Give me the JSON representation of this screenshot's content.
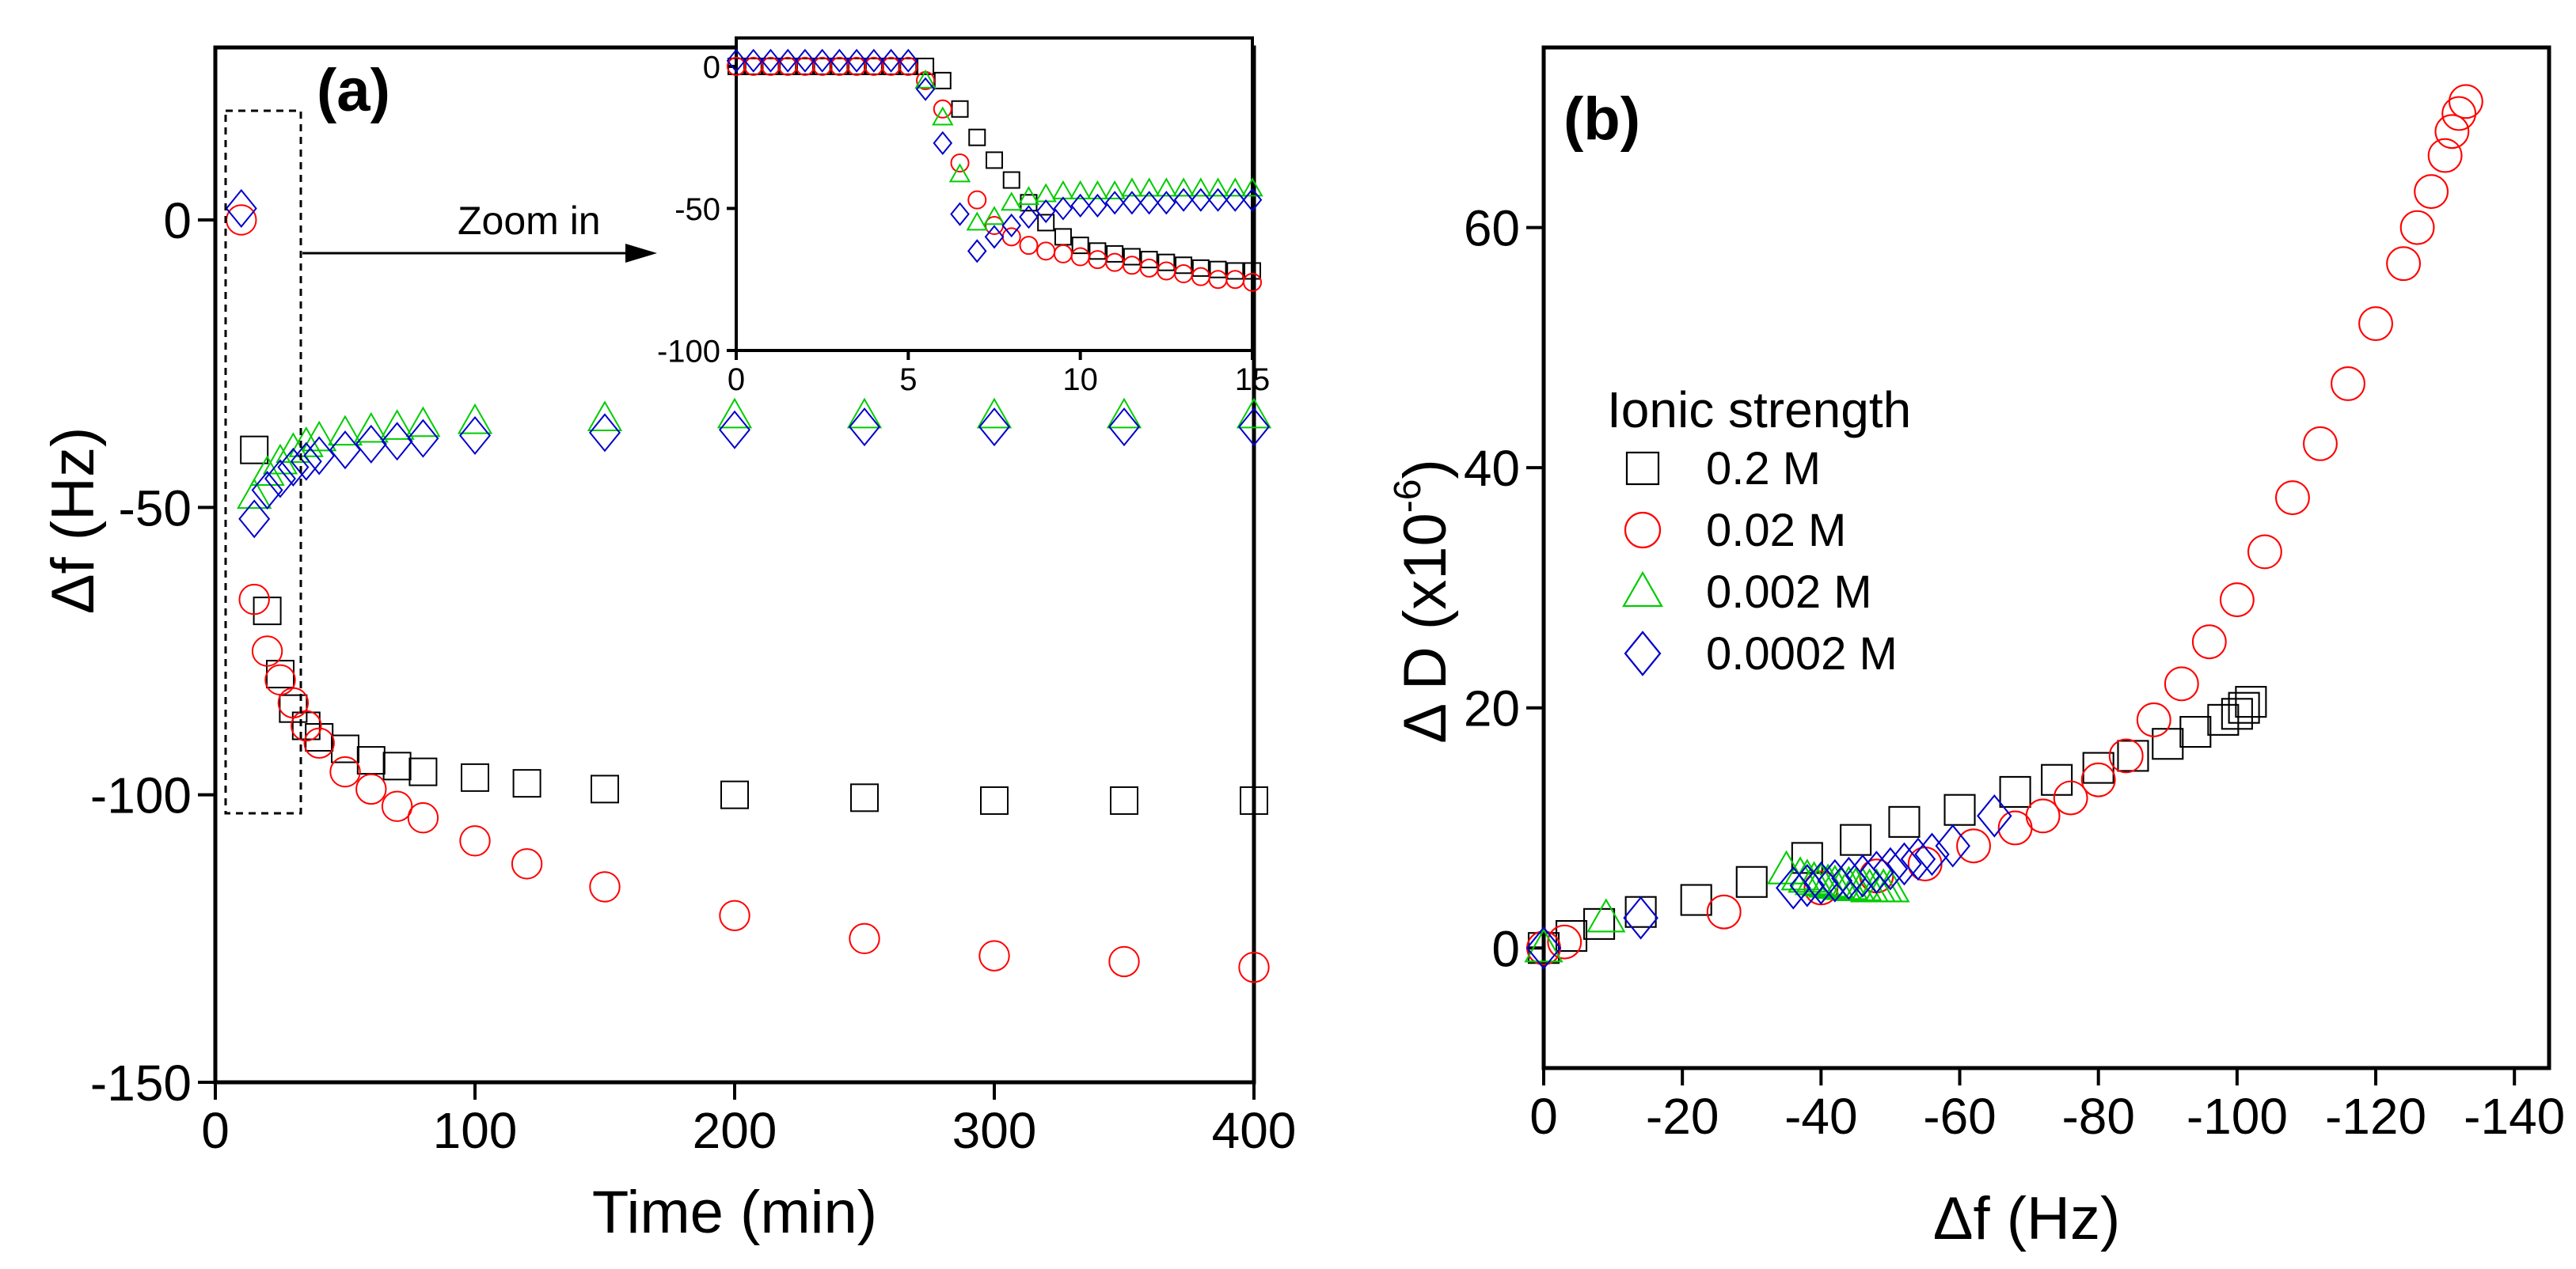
{
  "figure": {
    "panels": [
      "(a)",
      "(b)"
    ],
    "zoom_text": "Zoom in",
    "legend_title": "Ionic strength"
  },
  "colors": {
    "0.2 M": "#000000",
    "0.02 M": "#ff0000",
    "0.002 M": "#00cc00",
    "0.0002 M": "#0000cc"
  },
  "chart_data": [
    {
      "id": "a-main",
      "type": "scatter",
      "title": "(a)",
      "xlabel": "Time (min)",
      "ylabel": "Δf (Hz)",
      "xlim": [
        0,
        400
      ],
      "ylim": [
        -150,
        30
      ],
      "xticks": [
        0,
        100,
        200,
        300,
        400
      ],
      "yticks": [
        0,
        -50,
        -100,
        -150
      ],
      "series": [
        {
          "name": "0.2 M",
          "marker": "square",
          "x": [
            15,
            20,
            25,
            30,
            35,
            40,
            50,
            60,
            70,
            80,
            100,
            120,
            150,
            200,
            250,
            300,
            350,
            400
          ],
          "y": [
            -40,
            -68,
            -79,
            -85,
            -88,
            -90,
            -92,
            -94,
            -95,
            -96,
            -97,
            -98,
            -99,
            -100,
            -100.5,
            -101,
            -101,
            -101
          ]
        },
        {
          "name": "0.02 M",
          "marker": "circle",
          "x": [
            10,
            15,
            20,
            25,
            30,
            35,
            40,
            50,
            60,
            70,
            80,
            100,
            120,
            150,
            200,
            250,
            300,
            350,
            400
          ],
          "y": [
            0,
            -66,
            -75,
            -80,
            -84,
            -88,
            -91,
            -96,
            -99,
            -102,
            -104,
            -108,
            -112,
            -116,
            -121,
            -125,
            -128,
            -129,
            -130
          ]
        },
        {
          "name": "0.002 M",
          "marker": "triangle",
          "x": [
            15,
            20,
            25,
            30,
            35,
            40,
            50,
            60,
            70,
            80,
            100,
            150,
            200,
            250,
            300,
            350,
            400
          ],
          "y": [
            -48,
            -44,
            -42,
            -40,
            -39,
            -38,
            -37,
            -36.5,
            -36,
            -35.5,
            -35,
            -34.5,
            -34,
            -34,
            -34,
            -34,
            -34
          ]
        },
        {
          "name": "0.0002 M",
          "marker": "diamond",
          "x": [
            10,
            15,
            20,
            25,
            30,
            35,
            40,
            50,
            60,
            70,
            80,
            100,
            150,
            200,
            250,
            300,
            350,
            400
          ],
          "y": [
            2,
            -52,
            -47,
            -45,
            -43,
            -42,
            -41,
            -40,
            -39,
            -38.5,
            -38,
            -37.5,
            -37,
            -36.5,
            -36,
            -36,
            -36,
            -36
          ]
        }
      ]
    },
    {
      "id": "a-inset",
      "type": "scatter",
      "title": "",
      "xlim": [
        0,
        15
      ],
      "ylim": [
        -100,
        10
      ],
      "xticks": [
        0,
        5,
        10,
        15
      ],
      "yticks": [
        0,
        -50,
        -100
      ],
      "series": [
        {
          "name": "0.2 M",
          "marker": "square",
          "x": [
            0,
            0.5,
            1,
            1.5,
            2,
            2.5,
            3,
            3.5,
            4,
            4.5,
            5,
            5.5,
            6,
            6.5,
            7,
            7.5,
            8,
            8.5,
            9,
            9.5,
            10,
            10.5,
            11,
            11.5,
            12,
            12.5,
            13,
            13.5,
            14,
            14.5,
            15
          ],
          "y": [
            0,
            0,
            0,
            0,
            0,
            0,
            0,
            0,
            0,
            0,
            0,
            0,
            -5,
            -15,
            -25,
            -33,
            -40,
            -48,
            -55,
            -60,
            -63,
            -65,
            -66,
            -67,
            -68,
            -69,
            -70,
            -71,
            -71.5,
            -72,
            -72
          ]
        },
        {
          "name": "0.02 M",
          "marker": "circle",
          "x": [
            0,
            0.5,
            1,
            1.5,
            2,
            2.5,
            3,
            3.5,
            4,
            4.5,
            5,
            5.5,
            6,
            6.5,
            7,
            7.5,
            8,
            8.5,
            9,
            9.5,
            10,
            10.5,
            11,
            11.5,
            12,
            12.5,
            13,
            13.5,
            14,
            14.5,
            15
          ],
          "y": [
            0,
            0,
            0,
            0,
            0,
            0,
            0,
            0,
            0,
            0,
            0,
            -5,
            -15,
            -34,
            -47,
            -56,
            -60,
            -63,
            -65,
            -66,
            -67,
            -68,
            -69,
            -70,
            -71,
            -72,
            -73,
            -74,
            -75,
            -75,
            -76
          ]
        },
        {
          "name": "0.002 M",
          "marker": "triangle",
          "x": [
            5.5,
            6,
            6.5,
            7,
            7.5,
            8,
            8.5,
            9,
            9.5,
            10,
            10.5,
            11,
            11.5,
            12,
            12.5,
            13,
            13.5,
            14,
            14.5,
            15
          ],
          "y": [
            -5,
            -18,
            -38,
            -55,
            -53,
            -48,
            -46,
            -45,
            -44,
            -44,
            -44,
            -44,
            -43,
            -43,
            -43,
            -43,
            -43,
            -43,
            -43,
            -43
          ]
        },
        {
          "name": "0.0002 M",
          "marker": "diamond",
          "x": [
            0,
            0.5,
            1,
            1.5,
            2,
            2.5,
            3,
            3.5,
            4,
            4.5,
            5,
            5.5,
            6,
            6.5,
            7,
            7.5,
            8,
            8.5,
            9,
            9.5,
            10,
            10.5,
            11,
            11.5,
            12,
            12.5,
            13,
            13.5,
            14,
            14.5,
            15
          ],
          "y": [
            2,
            2,
            2,
            2,
            2,
            2,
            2,
            2,
            2,
            2,
            2,
            -8,
            -27,
            -52,
            -65,
            -60,
            -56,
            -53,
            -51,
            -50,
            -49,
            -49,
            -48,
            -48,
            -48,
            -48,
            -47,
            -47,
            -47,
            -47,
            -47
          ]
        }
      ]
    },
    {
      "id": "b",
      "type": "scatter",
      "title": "(b)",
      "xlabel": "Δf (Hz)",
      "ylabel": "Δ D (x10",
      "ylabel_sup": "-6",
      "ylabel_end": ")",
      "xlim": [
        0,
        -145
      ],
      "ylim": [
        -10,
        75
      ],
      "xticks": [
        0,
        -20,
        -40,
        -60,
        -80,
        -100,
        -120,
        -140
      ],
      "yticks": [
        0,
        20,
        40,
        60
      ],
      "legend": [
        "0.2 M",
        "0.02 M",
        "0.002 M",
        "0.0002 M"
      ],
      "legend_position": "upper-left",
      "series": [
        {
          "name": "0.2 M",
          "marker": "square",
          "x": [
            0,
            -4,
            -8,
            -14,
            -22,
            -30,
            -38,
            -45,
            -52,
            -60,
            -68,
            -74,
            -80,
            -85,
            -90,
            -94,
            -98,
            -100,
            -101,
            -102
          ],
          "y": [
            0,
            1,
            2,
            3,
            4,
            5.5,
            7.5,
            9,
            10.5,
            11.5,
            13,
            14,
            15,
            16,
            17,
            18,
            19,
            19.5,
            20,
            20.5
          ]
        },
        {
          "name": "0.02 M",
          "marker": "circle",
          "x": [
            0,
            -3,
            -26,
            -40,
            -48,
            -55,
            -62,
            -68,
            -72,
            -76,
            -80,
            -84,
            -88,
            -92,
            -96,
            -100,
            -104,
            -108,
            -112,
            -116,
            -120,
            -124,
            -126,
            -128,
            -130,
            -131,
            -132,
            -133
          ],
          "y": [
            0,
            0.5,
            3,
            5,
            6,
            7,
            8.5,
            10,
            11,
            12.5,
            14,
            16,
            19,
            22,
            25.5,
            29,
            33,
            37.5,
            42,
            47,
            52,
            57,
            60,
            63,
            66,
            68,
            69.5,
            70.5
          ]
        },
        {
          "name": "0.002 M",
          "marker": "triangle",
          "x": [
            0,
            -9,
            -35,
            -37,
            -38,
            -39,
            -40,
            -41,
            -42,
            -43,
            -44,
            -45,
            -46,
            -47,
            -48,
            -49,
            -50
          ],
          "y": [
            0,
            2.5,
            6.5,
            6,
            5.8,
            5.6,
            5.5,
            5.4,
            5.3,
            5.2,
            5.2,
            5.1,
            5.1,
            5,
            5,
            5,
            5
          ]
        },
        {
          "name": "0.0002 M",
          "marker": "diamond",
          "x": [
            0,
            -14,
            -36,
            -38,
            -40,
            -42,
            -44,
            -46,
            -48,
            -50,
            -52,
            -54,
            -56,
            -59,
            -65
          ],
          "y": [
            0,
            2.5,
            5,
            5.2,
            5.4,
            5.6,
            5.8,
            6,
            6.3,
            6.6,
            7,
            7.4,
            7.8,
            8.5,
            11
          ]
        }
      ]
    }
  ]
}
